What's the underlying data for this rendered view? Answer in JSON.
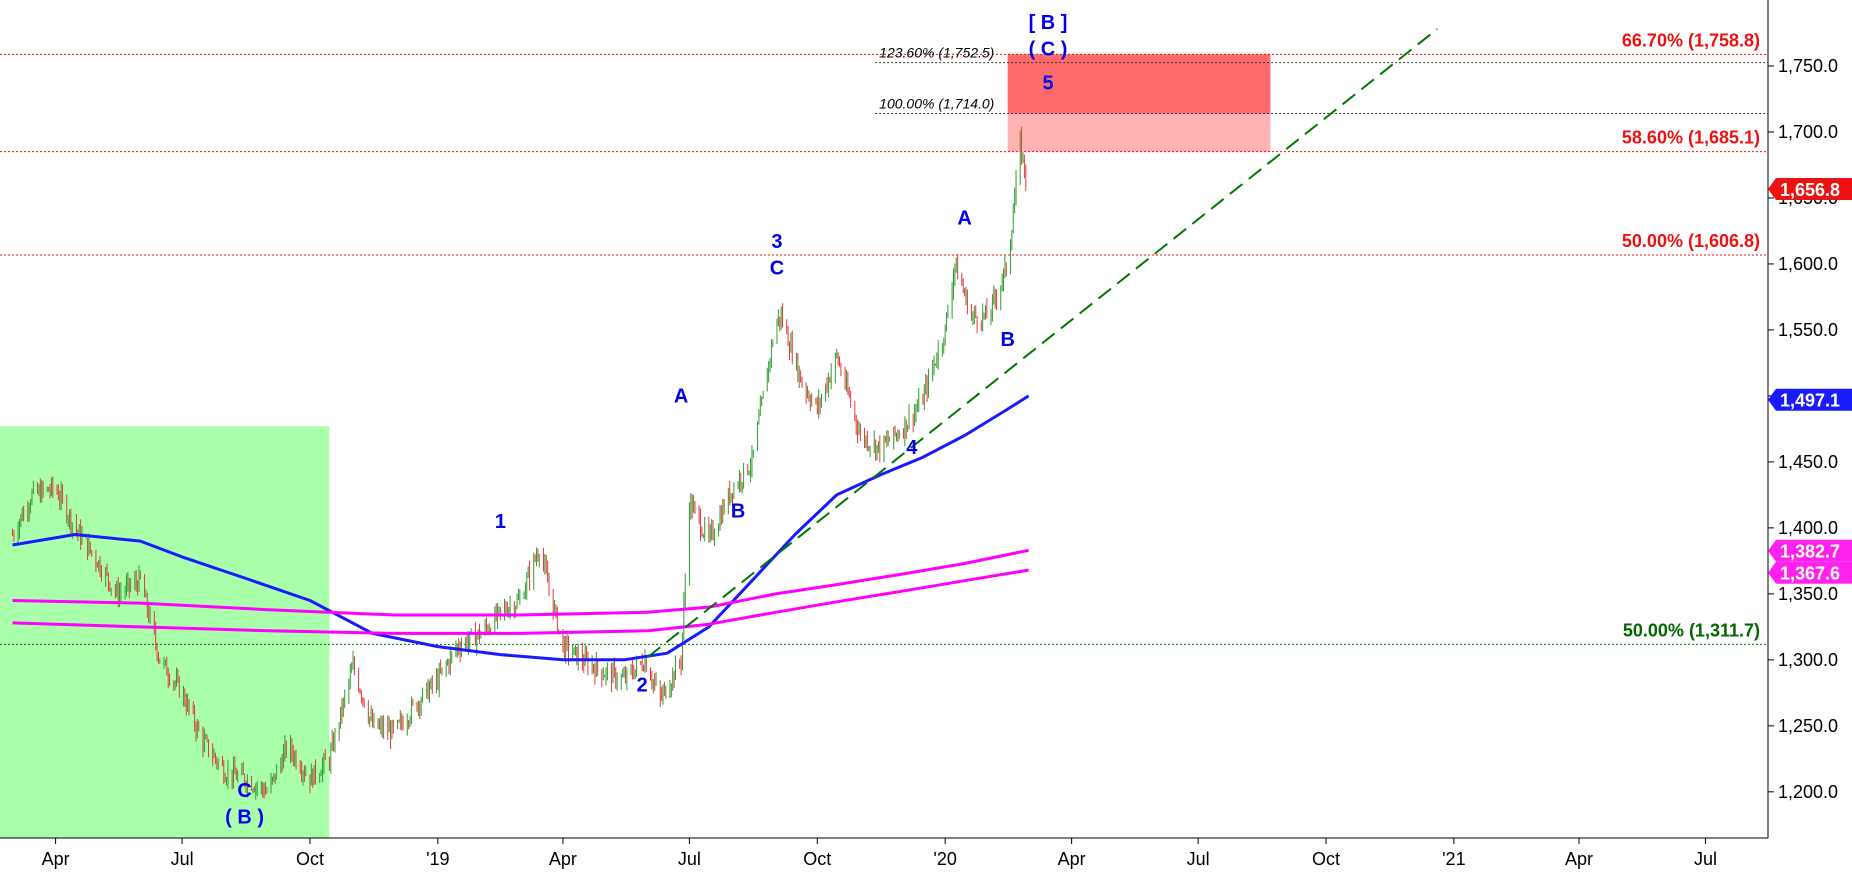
{
  "chart_data": {
    "type": "line",
    "title": "",
    "xlabel": "",
    "ylabel": "",
    "ylim": [
      1165,
      1800
    ],
    "grid": false,
    "x_ticks": [
      "Apr",
      "Jul",
      "Oct",
      "'19",
      "Apr",
      "Jul",
      "Oct",
      "'20",
      "Apr",
      "Jul",
      "Oct",
      "'21",
      "Apr",
      "Jul"
    ],
    "y_ticks": [
      1200,
      1250,
      1300,
      1350,
      1400,
      1450,
      1500,
      1550,
      1600,
      1650,
      1700,
      1750
    ],
    "y_tick_labels": [
      "1,200.0",
      "1,250.0",
      "1,300.0",
      "1,350.0",
      "1,400.0",
      "1,450.0",
      "1,500.0",
      "1,550.0",
      "1,600.0",
      "1,650.0",
      "1,700.0",
      "1,750.0"
    ],
    "price_series": {
      "name": "Price",
      "x": [
        "2018-03-01",
        "2018-03-15",
        "2018-04-01",
        "2018-04-15",
        "2018-05-01",
        "2018-05-15",
        "2018-06-01",
        "2018-06-15",
        "2018-07-01",
        "2018-07-15",
        "2018-08-01",
        "2018-08-15",
        "2018-09-01",
        "2018-09-15",
        "2018-10-01",
        "2018-10-15",
        "2018-11-01",
        "2018-11-15",
        "2018-12-01",
        "2018-12-15",
        "2019-01-01",
        "2019-01-15",
        "2019-02-01",
        "2019-02-20",
        "2019-03-01",
        "2019-03-15",
        "2019-04-01",
        "2019-04-15",
        "2019-05-01",
        "2019-05-15",
        "2019-05-30",
        "2019-06-10",
        "2019-06-25",
        "2019-07-01",
        "2019-07-15",
        "2019-08-01",
        "2019-08-15",
        "2019-09-01",
        "2019-09-05",
        "2019-09-20",
        "2019-10-01",
        "2019-10-15",
        "2019-11-01",
        "2019-11-15",
        "2019-12-01",
        "2019-12-15",
        "2020-01-01",
        "2020-01-08",
        "2020-01-20",
        "2020-02-01",
        "2020-02-15",
        "2020-02-24",
        "2020-03-01"
      ],
      "values": [
        1395,
        1425,
        1430,
        1400,
        1375,
        1350,
        1360,
        1300,
        1275,
        1240,
        1215,
        1210,
        1200,
        1235,
        1210,
        1225,
        1295,
        1250,
        1245,
        1265,
        1285,
        1310,
        1320,
        1340,
        1345,
        1385,
        1310,
        1300,
        1290,
        1285,
        1300,
        1270,
        1300,
        1420,
        1390,
        1430,
        1450,
        1555,
        1560,
        1510,
        1490,
        1530,
        1470,
        1460,
        1475,
        1495,
        1550,
        1600,
        1560,
        1560,
        1600,
        1690,
        1656
      ]
    },
    "series": [
      {
        "name": "",
        "color": "#1a1aff",
        "x": [
          "2018-03-01",
          "2018-04-15",
          "2018-06-01",
          "2018-07-01",
          "2018-08-15",
          "2018-10-01",
          "2018-11-15",
          "2019-01-01",
          "2019-02-15",
          "2019-04-01",
          "2019-05-15",
          "2019-06-15",
          "2019-07-15",
          "2019-08-15",
          "2019-09-15",
          "2019-10-15",
          "2019-11-15",
          "2019-12-15",
          "2020-01-15",
          "2020-02-15",
          "2020-03-01"
        ],
        "values": [
          1387,
          1395,
          1390,
          1378,
          1362,
          1345,
          1320,
          1310,
          1304,
          1300,
          1300,
          1305,
          1325,
          1360,
          1395,
          1425,
          1440,
          1453,
          1470,
          1490,
          1500
        ]
      },
      {
        "name": "",
        "color": "#ff00ff",
        "x": [
          "2018-03-01",
          "2018-06-01",
          "2018-09-01",
          "2018-12-01",
          "2019-03-01",
          "2019-06-01",
          "2019-07-15",
          "2019-09-01",
          "2019-10-15",
          "2019-12-01",
          "2020-01-15",
          "2020-03-01"
        ],
        "values": [
          1345,
          1343,
          1338,
          1334,
          1334,
          1336,
          1340,
          1350,
          1357,
          1365,
          1373,
          1383
        ]
      },
      {
        "name": "",
        "color": "#ff00ff",
        "x": [
          "2018-03-01",
          "2018-06-01",
          "2018-09-01",
          "2018-12-01",
          "2019-03-01",
          "2019-06-01",
          "2019-07-15",
          "2019-09-01",
          "2019-10-15",
          "2019-12-01",
          "2020-01-15",
          "2020-03-01"
        ],
        "values": [
          1328,
          1325,
          1322,
          1320,
          1320,
          1322,
          1327,
          1336,
          1344,
          1352,
          1360,
          1368
        ]
      }
    ],
    "trendline": {
      "color": "#007700",
      "from": [
        "2019-06-01",
        1302
      ],
      "to": [
        "2020-12-20",
        1778
      ]
    },
    "highlight_region": {
      "color": "#aaffaa",
      "x_from": "2018-02-15",
      "x_to": "2018-10-15",
      "y_to": 1477
    },
    "target_zone": {
      "color": "#ff6b6b",
      "x_from": "2020-02-15",
      "x_to": "2020-08-22",
      "y_from": 1685.1,
      "y_to": 1758.8,
      "inner_y_from": 1714.0
    },
    "fib_lines": [
      {
        "label": "66.70% (1,758.8)",
        "value": 1758.8,
        "color": "#ee1111"
      },
      {
        "label": "58.60% (1,685.1)",
        "value": 1685.1,
        "color": "#ee1111"
      },
      {
        "label": "50.00% (1,606.8)",
        "value": 1606.8,
        "color": "#ee1111"
      },
      {
        "label": "50.00% (1,311.7)",
        "value": 1311.7,
        "color": "#006600"
      }
    ],
    "projection_lines": [
      {
        "label": "123.60% (1,752.5)",
        "value": 1752.5,
        "x_from": "2020-01-01"
      },
      {
        "label": "100.00% (1,714.0)",
        "value": 1714.0,
        "x_from": "2020-01-01"
      }
    ],
    "price_tags": [
      {
        "label": "1,656.8",
        "value": 1656.8,
        "color": "#ee1111"
      },
      {
        "label": "1,497.1",
        "value": 1497.1,
        "color": "#1a1aff"
      },
      {
        "label": "1,382.7",
        "value": 1382.7,
        "color": "#ff22ee"
      },
      {
        "label": "1,367.6",
        "value": 1367.6,
        "color": "#ff22ee"
      }
    ],
    "wave_labels": [
      {
        "text": "C",
        "x": "2018-08-15",
        "y": 1196
      },
      {
        "text": "( B )",
        "x": "2018-08-15",
        "y": 1176
      },
      {
        "text": "1",
        "x": "2019-02-15",
        "y": 1400
      },
      {
        "text": "2",
        "x": "2019-05-28",
        "y": 1276
      },
      {
        "text": "A",
        "x": "2019-06-25",
        "y": 1495
      },
      {
        "text": "B",
        "x": "2019-08-05",
        "y": 1408
      },
      {
        "text": "3",
        "x": "2019-09-02",
        "y": 1612
      },
      {
        "text": "C",
        "x": "2019-09-02",
        "y": 1592
      },
      {
        "text": "4",
        "x": "2019-12-08",
        "y": 1456
      },
      {
        "text": "A",
        "x": "2020-01-15",
        "y": 1630
      },
      {
        "text": "B",
        "x": "2020-02-15",
        "y": 1538
      },
      {
        "text": "[ B ]",
        "x": "2020-03-15",
        "y": 1778
      },
      {
        "text": "( C )",
        "x": "2020-03-15",
        "y": 1758
      },
      {
        "text": "5",
        "x": "2020-03-15",
        "y": 1732
      }
    ]
  }
}
